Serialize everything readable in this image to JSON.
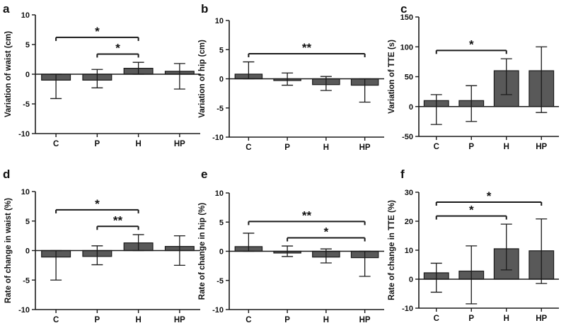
{
  "colors": {
    "bar_fill": "#595959",
    "bar_stroke": "#1a1a1a",
    "axis": "#1a1a1a"
  },
  "chart_data": [
    {
      "panel_label": "a",
      "type": "bar",
      "categories": [
        "C",
        "P",
        "H",
        "HP"
      ],
      "values": [
        -1.0,
        -1.0,
        1.0,
        0.5
      ],
      "errors_upper": [
        0.0,
        0.8,
        2.0,
        1.8
      ],
      "errors_lower": [
        -4.1,
        -2.3,
        0.0,
        -2.5
      ],
      "ylabel": "Variation of waist (cm)",
      "xlabel": "",
      "ylim": [
        -10,
        10
      ],
      "yticks": [
        -10,
        -5,
        0,
        5,
        10
      ],
      "significance": [
        {
          "from": 0,
          "to": 2,
          "label": "*"
        },
        {
          "from": 1,
          "to": 2,
          "label": "*"
        }
      ]
    },
    {
      "panel_label": "b",
      "type": "bar",
      "categories": [
        "C",
        "P",
        "H",
        "HP"
      ],
      "values": [
        0.8,
        -0.3,
        -1.0,
        -1.1
      ],
      "errors_upper": [
        2.9,
        1.0,
        0.4,
        0.0
      ],
      "errors_lower": [
        0.0,
        -1.1,
        -2.0,
        -4.0
      ],
      "ylabel": "Variation of hip (cm)",
      "xlabel": "",
      "ylim": [
        -10,
        10
      ],
      "yticks": [
        -10,
        -5,
        0,
        5,
        10
      ],
      "significance": [
        {
          "from": 0,
          "to": 3,
          "label": "**"
        }
      ]
    },
    {
      "panel_label": "c",
      "type": "bar",
      "categories": [
        "C",
        "P",
        "H",
        "HP"
      ],
      "values": [
        10,
        10,
        60,
        60
      ],
      "errors_upper": [
        20,
        35,
        80,
        100
      ],
      "errors_lower": [
        -30,
        -25,
        20,
        -10
      ],
      "ylabel": "Variation of TTE (s)",
      "xlabel": "",
      "ylim": [
        -50,
        150
      ],
      "yticks": [
        -50,
        0,
        50,
        100,
        150
      ],
      "significance": [
        {
          "from": 0,
          "to": 2,
          "label": "*"
        }
      ]
    },
    {
      "panel_label": "d",
      "type": "bar",
      "categories": [
        "C",
        "P",
        "H",
        "HP"
      ],
      "values": [
        -1.1,
        -1.0,
        1.3,
        0.7
      ],
      "errors_upper": [
        0.0,
        0.8,
        2.7,
        2.5
      ],
      "errors_lower": [
        -5.0,
        -2.4,
        0.0,
        -2.5
      ],
      "ylabel": "Rate of change in waist (%)",
      "xlabel": "",
      "ylim": [
        -10,
        10
      ],
      "yticks": [
        -10,
        -5,
        0,
        5,
        10
      ],
      "significance": [
        {
          "from": 0,
          "to": 2,
          "label": "*"
        },
        {
          "from": 1,
          "to": 2,
          "label": "**"
        }
      ]
    },
    {
      "panel_label": "e",
      "type": "bar",
      "categories": [
        "C",
        "P",
        "H",
        "HP"
      ],
      "values": [
        0.8,
        -0.3,
        -1.0,
        -1.1
      ],
      "errors_upper": [
        3.1,
        0.9,
        0.4,
        0.0
      ],
      "errors_lower": [
        0.0,
        -0.9,
        -2.0,
        -4.3
      ],
      "ylabel": "Rate of change in hip (%)",
      "xlabel": "",
      "ylim": [
        -10,
        10
      ],
      "yticks": [
        -10,
        -5,
        0,
        5,
        10
      ],
      "significance": [
        {
          "from": 0,
          "to": 3,
          "label": "**"
        },
        {
          "from": 1,
          "to": 3,
          "label": "*"
        }
      ]
    },
    {
      "panel_label": "f",
      "type": "bar",
      "categories": [
        "C",
        "P",
        "H",
        "HP"
      ],
      "values": [
        2.2,
        2.8,
        10.5,
        9.8
      ],
      "errors_upper": [
        5.5,
        11.5,
        19.0,
        20.8
      ],
      "errors_lower": [
        -4.5,
        -8.5,
        3.2,
        -1.5
      ],
      "ylabel": "Rate of change in TTE (%)",
      "xlabel": "",
      "ylim": [
        -10,
        30
      ],
      "yticks": [
        -10,
        0,
        10,
        20,
        30
      ],
      "significance": [
        {
          "from": 0,
          "to": 2,
          "label": "*"
        },
        {
          "from": 0,
          "to": 3,
          "label": "*"
        }
      ]
    }
  ]
}
